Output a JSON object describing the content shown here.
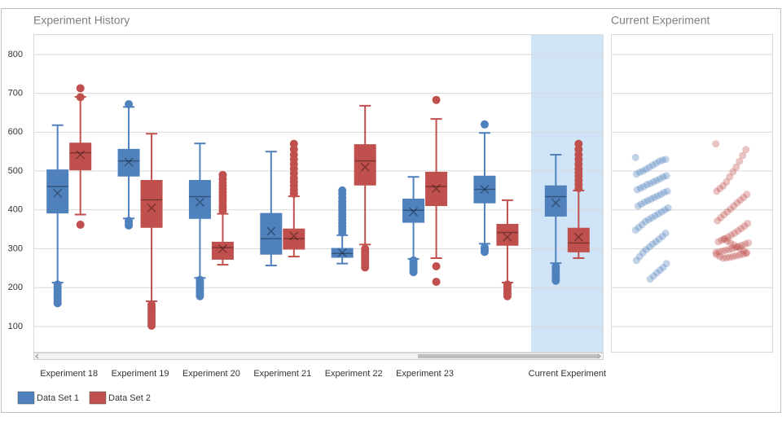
{
  "chart_data": [
    {
      "type": "box",
      "title": "Experiment History",
      "categories": [
        "Experiment 18",
        "Experiment 19",
        "Experiment 20",
        "Experiment 21",
        "Experiment 22",
        "Experiment 23",
        null,
        "Current Experiment"
      ],
      "ylim": [
        35,
        850
      ],
      "yticks": [
        100,
        200,
        300,
        400,
        500,
        600,
        700,
        800
      ],
      "grid": true,
      "legend": "bottom-left",
      "series": [
        {
          "name": "Data Set 1",
          "color": "#4f81bd",
          "boxes": [
            {
              "min": 213,
              "q1": 392,
              "median": 460,
              "q3": 503,
              "max": 618,
              "mean": 443,
              "outliers": [
                160,
                166,
                172,
                178,
                184,
                190,
                196,
                202,
                208
              ]
            },
            {
              "min": 378,
              "q1": 487,
              "median": 526,
              "q3": 556,
              "max": 665,
              "mean": 523,
              "outliers": [
                672,
                360,
                366,
                372
              ]
            },
            {
              "min": 225,
              "q1": 378,
              "median": 434,
              "q3": 476,
              "max": 571,
              "mean": 420,
              "outliers": [
                178,
                184,
                190,
                196,
                202,
                208,
                214,
                220
              ]
            },
            {
              "min": 257,
              "q1": 286,
              "median": 326,
              "q3": 391,
              "max": 550,
              "mean": 345,
              "outliers": []
            },
            {
              "min": 262,
              "q1": 278,
              "median": 288,
              "q3": 301,
              "max": 335,
              "mean": 290,
              "outliers": [
                342,
                350,
                358,
                366,
                374,
                382,
                390,
                398,
                406,
                414,
                422,
                432,
                442,
                450
              ]
            },
            {
              "min": 274,
              "q1": 368,
              "median": 399,
              "q3": 428,
              "max": 485,
              "mean": 395,
              "outliers": [
                240,
                246,
                252,
                258,
                264,
                270
              ]
            },
            {
              "min": 313,
              "q1": 418,
              "median": 453,
              "q3": 487,
              "max": 598,
              "mean": 453,
              "outliers": [
                620,
                292,
                298,
                304
              ]
            },
            {
              "min": 263,
              "q1": 384,
              "median": 434,
              "q3": 462,
              "max": 542,
              "mean": 418,
              "outliers": [
                218,
                224,
                230,
                236,
                242,
                248,
                254
              ]
            }
          ]
        },
        {
          "name": "Data Set 2",
          "color": "#c0504d",
          "boxes": [
            {
              "min": 388,
              "q1": 503,
              "median": 547,
              "q3": 572,
              "max": 691,
              "mean": 542,
              "outliers": [
                713,
                690,
                362
              ]
            },
            {
              "min": 165,
              "q1": 355,
              "median": 426,
              "q3": 476,
              "max": 596,
              "mean": 405,
              "outliers": [
                102,
                108,
                114,
                120,
                126,
                132,
                138,
                144,
                150,
                156
              ]
            },
            {
              "min": 259,
              "q1": 273,
              "median": 303,
              "q3": 317,
              "max": 390,
              "mean": 300,
              "outliers": [
                398,
                406,
                414,
                422,
                430,
                438,
                446,
                454,
                462,
                470,
                480,
                490
              ]
            },
            {
              "min": 280,
              "q1": 299,
              "median": 326,
              "q3": 351,
              "max": 435,
              "mean": 333,
              "outliers": [
                442,
                452,
                462,
                472,
                482,
                494,
                506,
                518,
                530,
                542,
                556,
                570
              ]
            },
            {
              "min": 311,
              "q1": 464,
              "median": 526,
              "q3": 568,
              "max": 668,
              "mean": 510,
              "outliers": [
                252,
                258,
                264,
                270,
                276,
                282,
                288,
                294,
                300
              ]
            },
            {
              "min": 276,
              "q1": 411,
              "median": 460,
              "q3": 497,
              "max": 634,
              "mean": 455,
              "outliers": [
                683,
                255,
                215
              ]
            },
            {
              "min": 213,
              "q1": 309,
              "median": 342,
              "q3": 363,
              "max": 425,
              "mean": 330,
              "outliers": [
                178,
                184,
                190,
                196,
                202,
                208
              ]
            },
            {
              "min": 276,
              "q1": 292,
              "median": 315,
              "q3": 353,
              "max": 450,
              "mean": 330,
              "outliers": [
                456,
                466,
                476,
                486,
                496,
                506,
                518,
                530,
                542,
                556,
                570
              ]
            }
          ]
        }
      ]
    },
    {
      "type": "strip",
      "title": "Current Experiment",
      "ylim": [
        35,
        850
      ],
      "yticks": [
        100,
        200,
        300,
        400,
        500,
        600,
        700,
        800
      ],
      "grid": true,
      "series": [
        {
          "color": "#4f81bd",
          "values": [
            535,
            530,
            528,
            525,
            520,
            515,
            510,
            505,
            500,
            497,
            492,
            488,
            485,
            480,
            476,
            472,
            468,
            465,
            460,
            456,
            452,
            448,
            445,
            440,
            436,
            432,
            428,
            424,
            420,
            415,
            410,
            405,
            400,
            395,
            390,
            385,
            380,
            375,
            370,
            362,
            355,
            348,
            340,
            332,
            325,
            318,
            312,
            305,
            298,
            290,
            280,
            270,
            262,
            252,
            245,
            238,
            230,
            222
          ]
        },
        {
          "color": "#c0504d",
          "values": [
            570,
            555,
            540,
            525,
            510,
            498,
            485,
            472,
            462,
            455,
            448,
            440,
            432,
            425,
            418,
            410,
            402,
            395,
            388,
            380,
            372,
            365,
            358,
            352,
            346,
            340,
            335,
            330,
            326,
            322,
            318,
            315,
            312,
            309,
            306,
            303,
            300,
            298,
            296,
            294,
            292,
            290,
            288,
            286,
            284,
            282,
            280,
            278,
            277,
            276,
            280,
            285,
            290,
            295,
            300,
            305,
            310,
            315,
            320,
            325
          ]
        }
      ]
    }
  ]
}
